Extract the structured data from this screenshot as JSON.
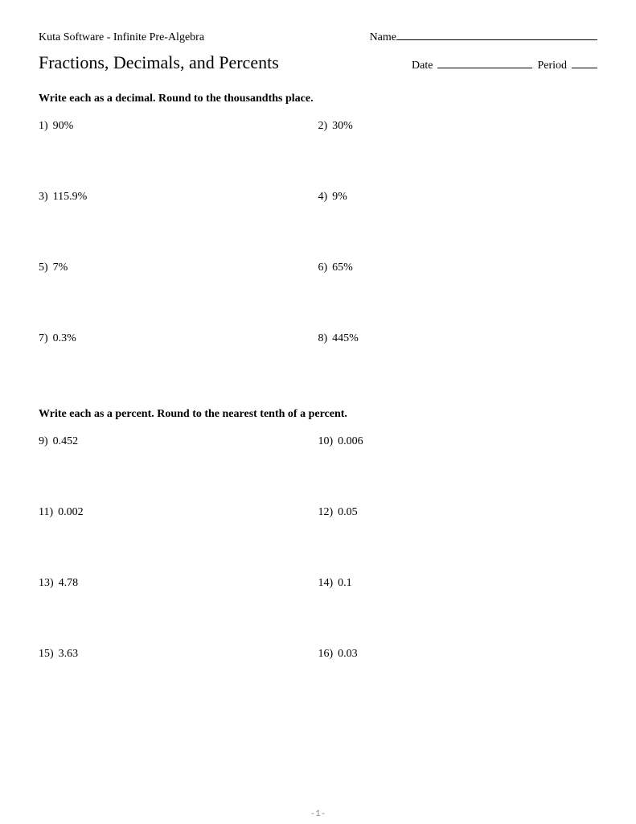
{
  "header": {
    "software": "Kuta Software - Infinite Pre-Algebra",
    "name_label": "Name",
    "date_label": "Date",
    "period_label": "Period"
  },
  "title": "Fractions, Decimals, and Percents",
  "section1": {
    "instruction": "Write each as a decimal.  Round to the thousandths place.",
    "problems": [
      {
        "num": "1)",
        "val": "90%"
      },
      {
        "num": "2)",
        "val": "30%"
      },
      {
        "num": "3)",
        "val": "115.9%"
      },
      {
        "num": "4)",
        "val": "9%"
      },
      {
        "num": "5)",
        "val": "7%"
      },
      {
        "num": "6)",
        "val": "65%"
      },
      {
        "num": "7)",
        "val": "0.3%"
      },
      {
        "num": "8)",
        "val": "445%"
      }
    ]
  },
  "section2": {
    "instruction": "Write each as a percent.  Round to the nearest tenth of a percent.",
    "problems": [
      {
        "num": "9)",
        "val": "0.452"
      },
      {
        "num": "10)",
        "val": "0.006"
      },
      {
        "num": "11)",
        "val": "0.002"
      },
      {
        "num": "12)",
        "val": "0.05"
      },
      {
        "num": "13)",
        "val": "4.78"
      },
      {
        "num": "14)",
        "val": "0.1"
      },
      {
        "num": "15)",
        "val": "3.63"
      },
      {
        "num": "16)",
        "val": "0.03"
      }
    ]
  },
  "footer": "-1-"
}
